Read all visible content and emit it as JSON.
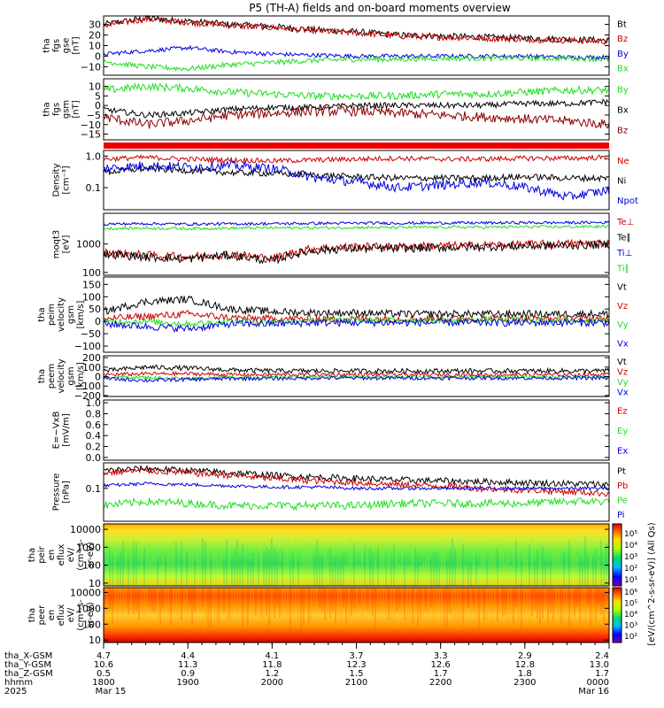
{
  "title": "P5 (TH-A) fields and on-board moments overview",
  "colors": {
    "black": "#000000",
    "red": "#cc0000",
    "dark_red": "#8b0000",
    "green": "#22dd22",
    "blue": "#0000dd"
  },
  "chart_data": [
    {
      "type": "line",
      "id": "fgs_gse",
      "ylabel_lines": [
        "tha",
        "fgs",
        "gse",
        "[nT]"
      ],
      "ylim": [
        -18,
        38
      ],
      "ticks": [
        -10,
        0,
        10,
        20,
        30
      ],
      "tick_labels": [
        "−10",
        "0",
        "10",
        "20",
        "30"
      ],
      "series": [
        {
          "name": "Bt",
          "color": "black",
          "anchors": [
            30,
            36,
            33,
            30,
            28,
            25,
            23,
            20,
            19,
            18,
            17,
            16,
            15
          ],
          "noise": 3
        },
        {
          "name": "Bz",
          "color": "red",
          "anchors": [
            29,
            35,
            32,
            29,
            27,
            24,
            22,
            19,
            18,
            17,
            16,
            15,
            14
          ],
          "noise": 3
        },
        {
          "name": "By",
          "color": "blue",
          "anchors": [
            2,
            5,
            8,
            4,
            2,
            1,
            0,
            0,
            0,
            0,
            0,
            -1,
            -1
          ],
          "noise": 2
        },
        {
          "name": "Bx",
          "color": "green",
          "anchors": [
            -5,
            -10,
            -12,
            -8,
            -6,
            -4,
            -3,
            -3,
            -2,
            -2,
            -2,
            -2,
            -3
          ],
          "noise": 2.5
        }
      ]
    },
    {
      "type": "line",
      "id": "fgs_gsm",
      "ylabel_lines": [
        "tha",
        "fgs",
        "gsm",
        "[nT]"
      ],
      "ylim": [
        -18,
        14
      ],
      "ticks": [
        -15,
        -10,
        -5,
        0,
        5,
        10
      ],
      "tick_labels": [
        "−15",
        "−10",
        "−5",
        "0",
        "5",
        "10"
      ],
      "series": [
        {
          "name": "By",
          "color": "green",
          "anchors": [
            8,
            10,
            9,
            7,
            6,
            5,
            5,
            5,
            6,
            6,
            7,
            8,
            8
          ],
          "noise": 2
        },
        {
          "name": "Bx",
          "color": "black",
          "anchors": [
            -2,
            -5,
            -4,
            -2,
            -1,
            -1,
            0,
            0,
            0,
            0,
            1,
            1,
            2
          ],
          "noise": 1.5
        },
        {
          "name": "Bz",
          "color": "dark_red",
          "anchors": [
            -6,
            -10,
            -8,
            -5,
            -4,
            -3,
            -3,
            -4,
            -5,
            -6,
            -7,
            -8,
            -10
          ],
          "noise": 2.5
        }
      ]
    },
    {
      "type": "line",
      "id": "density",
      "ylabel_lines": [
        "Density",
        "[cm⁻³]"
      ],
      "log": true,
      "ylim": [
        0.02,
        1.5
      ],
      "ticks": [
        0.1,
        1.0
      ],
      "tick_labels": [
        "0.1",
        "1.0"
      ],
      "series": [
        {
          "name": "Ne",
          "color": "red",
          "anchors": [
            0.8,
            0.9,
            0.8,
            0.75,
            0.7,
            0.75,
            0.8,
            0.85,
            0.8,
            0.8,
            0.85,
            0.85,
            0.9
          ],
          "noise": 0.08
        },
        {
          "name": "Ni",
          "color": "black",
          "anchors": [
            0.3,
            0.4,
            0.35,
            0.3,
            0.28,
            0.25,
            0.22,
            0.2,
            0.2,
            0.2,
            0.22,
            0.2,
            0.2
          ],
          "noise": 0.1
        },
        {
          "name": "Npot",
          "color": "blue",
          "anchors": [
            0.4,
            0.5,
            0.45,
            0.5,
            0.4,
            0.2,
            0.15,
            0.1,
            0.12,
            0.15,
            0.1,
            0.05,
            0.08
          ],
          "noise": 0.15
        }
      ]
    },
    {
      "type": "line",
      "id": "temperature",
      "ylabel_lines": [
        "moqt3",
        "[eV]"
      ],
      "log": true,
      "ylim": [
        80,
        12000
      ],
      "ticks": [
        100,
        1000
      ],
      "tick_labels": [
        "100",
        "1000"
      ],
      "series": [
        {
          "name": "Te⊥",
          "color": "red",
          "anchors": [
            500,
            400,
            350,
            450,
            300,
            700,
            800,
            800,
            850,
            900,
            950,
            1000,
            1100
          ],
          "noise": 0.15
        },
        {
          "name": "Te∥",
          "color": "black",
          "anchors": [
            450,
            350,
            300,
            400,
            250,
            600,
            700,
            700,
            750,
            800,
            850,
            900,
            950
          ],
          "noise": 0.15
        },
        {
          "name": "Ti⊥",
          "color": "blue",
          "anchors": [
            5000,
            5200,
            5000,
            5100,
            5200,
            5300,
            5400,
            5400,
            5500,
            5500,
            5600,
            5600,
            5700
          ],
          "noise": 0.05
        },
        {
          "name": "Ti∥",
          "color": "green",
          "anchors": [
            3500,
            3600,
            3500,
            3600,
            3700,
            3700,
            3800,
            3800,
            3900,
            3900,
            4000,
            4000,
            4100
          ],
          "noise": 0.05
        }
      ]
    },
    {
      "type": "line",
      "id": "peim_velocity",
      "ylabel_lines": [
        "tha",
        "peim",
        "velocity",
        "gsm",
        "[km/s]"
      ],
      "ylim": [
        -125,
        180
      ],
      "ticks": [
        -100,
        -50,
        0,
        50,
        100,
        150
      ],
      "tick_labels": [
        "−100",
        "−50",
        "0",
        "50",
        "100",
        "150"
      ],
      "series": [
        {
          "name": "Vt",
          "color": "black",
          "anchors": [
            40,
            80,
            90,
            50,
            40,
            35,
            35,
            30,
            30,
            30,
            30,
            30,
            30
          ],
          "noise": 15
        },
        {
          "name": "Vz",
          "color": "red",
          "anchors": [
            10,
            20,
            30,
            15,
            10,
            10,
            10,
            10,
            10,
            10,
            10,
            10,
            10
          ],
          "noise": 15
        },
        {
          "name": "Vy",
          "color": "green",
          "anchors": [
            0,
            0,
            -10,
            0,
            0,
            5,
            5,
            5,
            5,
            5,
            5,
            5,
            5
          ],
          "noise": 12
        },
        {
          "name": "Vx",
          "color": "blue",
          "anchors": [
            -10,
            -20,
            -30,
            -10,
            -10,
            -5,
            -5,
            -5,
            -5,
            -5,
            -5,
            -5,
            -5
          ],
          "noise": 15
        }
      ]
    },
    {
      "type": "line",
      "id": "peem_velocity",
      "ylabel_lines": [
        "tha",
        "peem",
        "velocity",
        "gsm",
        "[km/s]"
      ],
      "ylim": [
        -210,
        220
      ],
      "ticks": [
        -200,
        -100,
        0,
        100,
        200
      ],
      "tick_labels": [
        "−200",
        "−100",
        "0",
        "100",
        "200"
      ],
      "series": [
        {
          "name": "Vt",
          "color": "black",
          "anchors": [
            60,
            100,
            90,
            70,
            60,
            60,
            60,
            60,
            60,
            60,
            60,
            60,
            60
          ],
          "noise": 25
        },
        {
          "name": "Vz",
          "color": "red",
          "anchors": [
            20,
            30,
            30,
            20,
            20,
            20,
            20,
            20,
            20,
            20,
            20,
            20,
            20
          ],
          "noise": 20
        },
        {
          "name": "Vy",
          "color": "green",
          "anchors": [
            0,
            -10,
            -20,
            -10,
            -5,
            -5,
            -5,
            -5,
            -5,
            -5,
            -5,
            -5,
            -5
          ],
          "noise": 18
        },
        {
          "name": "Vx",
          "color": "blue",
          "anchors": [
            -20,
            -40,
            -30,
            -20,
            -20,
            -15,
            -15,
            -15,
            -15,
            -15,
            -15,
            -15,
            -15
          ],
          "noise": 20
        }
      ]
    },
    {
      "type": "line",
      "id": "efield",
      "ylabel_lines": [
        "E=−VxB",
        "[mV/m]"
      ],
      "ylim": [
        -0.05,
        1.05
      ],
      "ticks": [
        0.0,
        0.2,
        0.4,
        0.6,
        0.8,
        1.0
      ],
      "tick_labels": [
        "0.0",
        "0.2",
        "0.4",
        "0.6",
        "0.8",
        "1.0"
      ],
      "series": [
        {
          "name": "Ez",
          "color": "red",
          "anchors": []
        },
        {
          "name": "Ey",
          "color": "green",
          "anchors": []
        },
        {
          "name": "Ex",
          "color": "blue",
          "anchors": []
        }
      ]
    },
    {
      "type": "line",
      "id": "pressure",
      "ylabel_lines": [
        "Pressure",
        "[nPa]"
      ],
      "log": true,
      "ylim": [
        0.01,
        0.6
      ],
      "ticks": [
        0.1
      ],
      "tick_labels": [
        "0.1"
      ],
      "series": [
        {
          "name": "Pt",
          "color": "black",
          "anchors": [
            0.35,
            0.4,
            0.35,
            0.3,
            0.25,
            0.22,
            0.2,
            0.18,
            0.17,
            0.16,
            0.15,
            0.14,
            0.13
          ],
          "noise": 0.1
        },
        {
          "name": "Pb",
          "color": "red",
          "anchors": [
            0.3,
            0.35,
            0.3,
            0.25,
            0.2,
            0.17,
            0.15,
            0.13,
            0.12,
            0.1,
            0.09,
            0.08,
            0.07
          ],
          "noise": 0.1
        },
        {
          "name": "Pe",
          "color": "green",
          "anchors": [
            0.03,
            0.04,
            0.035,
            0.03,
            0.03,
            0.03,
            0.03,
            0.035,
            0.035,
            0.035,
            0.035,
            0.04,
            0.04
          ],
          "noise": 0.12
        },
        {
          "name": "Pi",
          "color": "blue",
          "anchors": [
            0.12,
            0.14,
            0.13,
            0.12,
            0.11,
            0.11,
            0.1,
            0.1,
            0.1,
            0.1,
            0.1,
            0.1,
            0.1
          ],
          "noise": 0.05
        }
      ]
    },
    {
      "type": "heatmap",
      "id": "peir_spec",
      "ylabel_lines": [
        "tha",
        "peir",
        "en",
        "eflux",
        "eV/",
        "(cm²-s-",
        "sr-eV)"
      ],
      "log": true,
      "ylim": [
        7,
        20000
      ],
      "ticks": [
        10,
        100,
        1000,
        10000
      ],
      "tick_labels": [
        "10",
        "100",
        "1000",
        "10000"
      ],
      "level": "low"
    },
    {
      "type": "heatmap",
      "id": "peer_spec",
      "ylabel_lines": [
        "tha",
        "peer",
        "en",
        "eflux",
        "eV/",
        "(cm²-s-",
        "sr-eV)"
      ],
      "log": true,
      "ylim": [
        7,
        20000
      ],
      "ticks": [
        10,
        100,
        1000,
        10000
      ],
      "tick_labels": [
        "10",
        "100",
        "1000",
        "10000"
      ],
      "level": "high"
    }
  ],
  "colorbar": {
    "label": "[eV/(cm^2-s-sr-eV)] (All Qs)",
    "upper_ticks": [
      "10⁵",
      "10⁴",
      "10³",
      "10²",
      "10¹"
    ],
    "lower_ticks": [
      "10⁶",
      "10⁵",
      "10⁴",
      "10³",
      "10²"
    ]
  },
  "x_axis": {
    "row_labels": [
      "tha_X-GSM",
      "tha_Y-GSM",
      "tha_Z-GSM",
      "hhmm",
      "2025"
    ],
    "columns": [
      {
        "x": "4.7",
        "y": "10.6",
        "z": "0.5",
        "hhmm": "1800",
        "date": "Mar 15"
      },
      {
        "x": "4.4",
        "y": "11.3",
        "z": "0.9",
        "hhmm": "1900",
        "date": ""
      },
      {
        "x": "4.1",
        "y": "11.8",
        "z": "1.2",
        "hhmm": "2000",
        "date": ""
      },
      {
        "x": "3.7",
        "y": "12.3",
        "z": "1.5",
        "hhmm": "2100",
        "date": ""
      },
      {
        "x": "3.3",
        "y": "12.6",
        "z": "1.7",
        "hhmm": "2200",
        "date": ""
      },
      {
        "x": "2.9",
        "y": "12.8",
        "z": "1.8",
        "hhmm": "2300",
        "date": ""
      },
      {
        "x": "2.4",
        "y": "13.0",
        "z": "1.7",
        "hhmm": "0000",
        "date": "Mar 16"
      }
    ]
  }
}
